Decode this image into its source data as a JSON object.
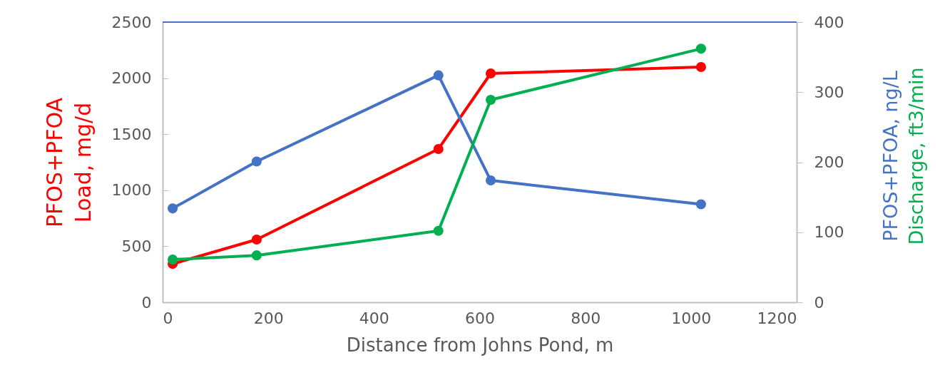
{
  "chart_data": {
    "type": "line",
    "xlabel": "Distance from Johns Pond, m",
    "ylabel": "PFOS+PFOA\nLoad, mg/d",
    "x": [
      19,
      178,
      522,
      621,
      1019
    ],
    "series": [
      {
        "color": "#ff0000",
        "values": [
          343,
          560,
          1368,
          2042,
          2099
        ]
      },
      {
        "name": "PFOS+PFOA, ng/L",
        "color": "#4472c4",
        "axis": "y2",
        "values": [
          134,
          201,
          324,
          174,
          140
        ]
      },
      {
        "name": "Discharge, ft3/min",
        "color": "#00b050",
        "axis": "y2",
        "values": [
          61,
          67,
          102,
          289,
          362
        ]
      }
    ],
    "xlim": [
      0,
      1200
    ],
    "xticks": [
      0,
      200,
      400,
      600,
      800,
      1000,
      1200
    ],
    "ylim": [
      0,
      2500
    ],
    "yticks": [
      0,
      500,
      1000,
      1500,
      2000,
      2500
    ],
    "y2lim": [
      0,
      400
    ],
    "y2ticks": [
      0,
      100,
      200,
      300,
      400
    ],
    "ref_lines": [
      {
        "axis": "y2",
        "value": 400,
        "color": "#4472c4"
      }
    ],
    "grid": false,
    "marker": "circle",
    "line_style": "solid"
  }
}
